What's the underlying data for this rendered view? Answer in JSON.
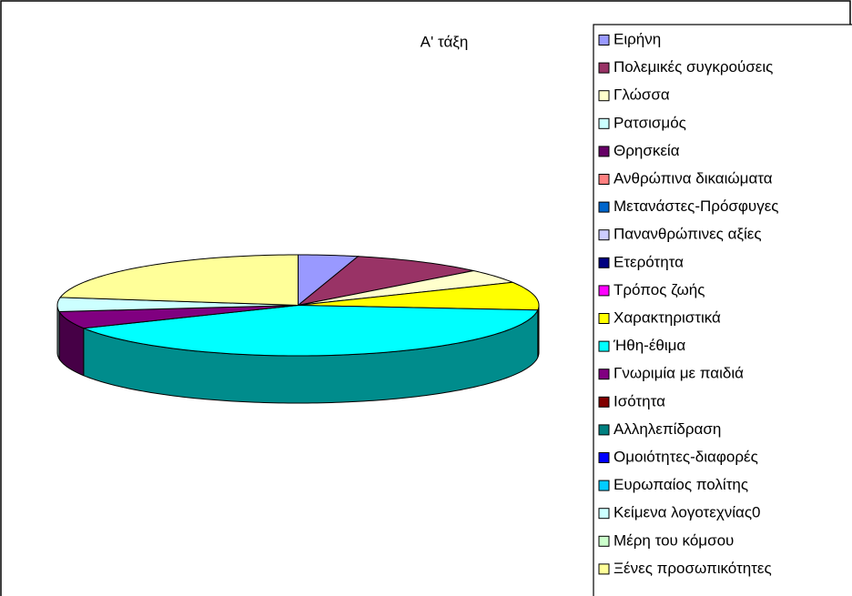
{
  "chart_data": {
    "type": "pie3d",
    "title": "Α' τάξη",
    "categories": [
      "Ειρήνη",
      "Πολεμικές συγκρούσεις",
      "Γλώσσα",
      "Ρατσισμός",
      "Θρησκεία",
      "Ανθρώπινα δικαιώματα",
      "Μετανάστες-Πρόσφυγες",
      "Πανανθρώπινες αξίες",
      "Ετερότητα",
      "Τρόπος ζωής",
      "Χαρακτηριστικά",
      "Ήθη-έθιμα",
      "Γνωριμία με παιδιά",
      "Ισότητα",
      "Αλληλεπίδραση",
      "Ομοιότητες-διαφορές",
      "Ευρωπαίος πολίτης",
      "Κείμενα λογοτεχνίας0",
      "Μέρη του κόμσου",
      "Ξένες προσωπικότητες"
    ],
    "values": [
      4,
      9,
      4.5,
      0,
      0,
      0,
      0,
      0,
      0,
      0,
      9,
      41,
      5.5,
      0,
      0,
      0,
      0,
      4.5,
      0,
      22.5
    ],
    "colors": [
      "#9999FF",
      "#993366",
      "#FFFFCC",
      "#CCFFFF",
      "#660066",
      "#FF8080",
      "#0066CC",
      "#CCCCFF",
      "#000080",
      "#FF00FF",
      "#FFFF00",
      "#00FFFF",
      "#800080",
      "#800000",
      "#008080",
      "#0000FF",
      "#00CCFF",
      "#CCFFFF",
      "#CCFFCC",
      "#FFFF99"
    ]
  }
}
